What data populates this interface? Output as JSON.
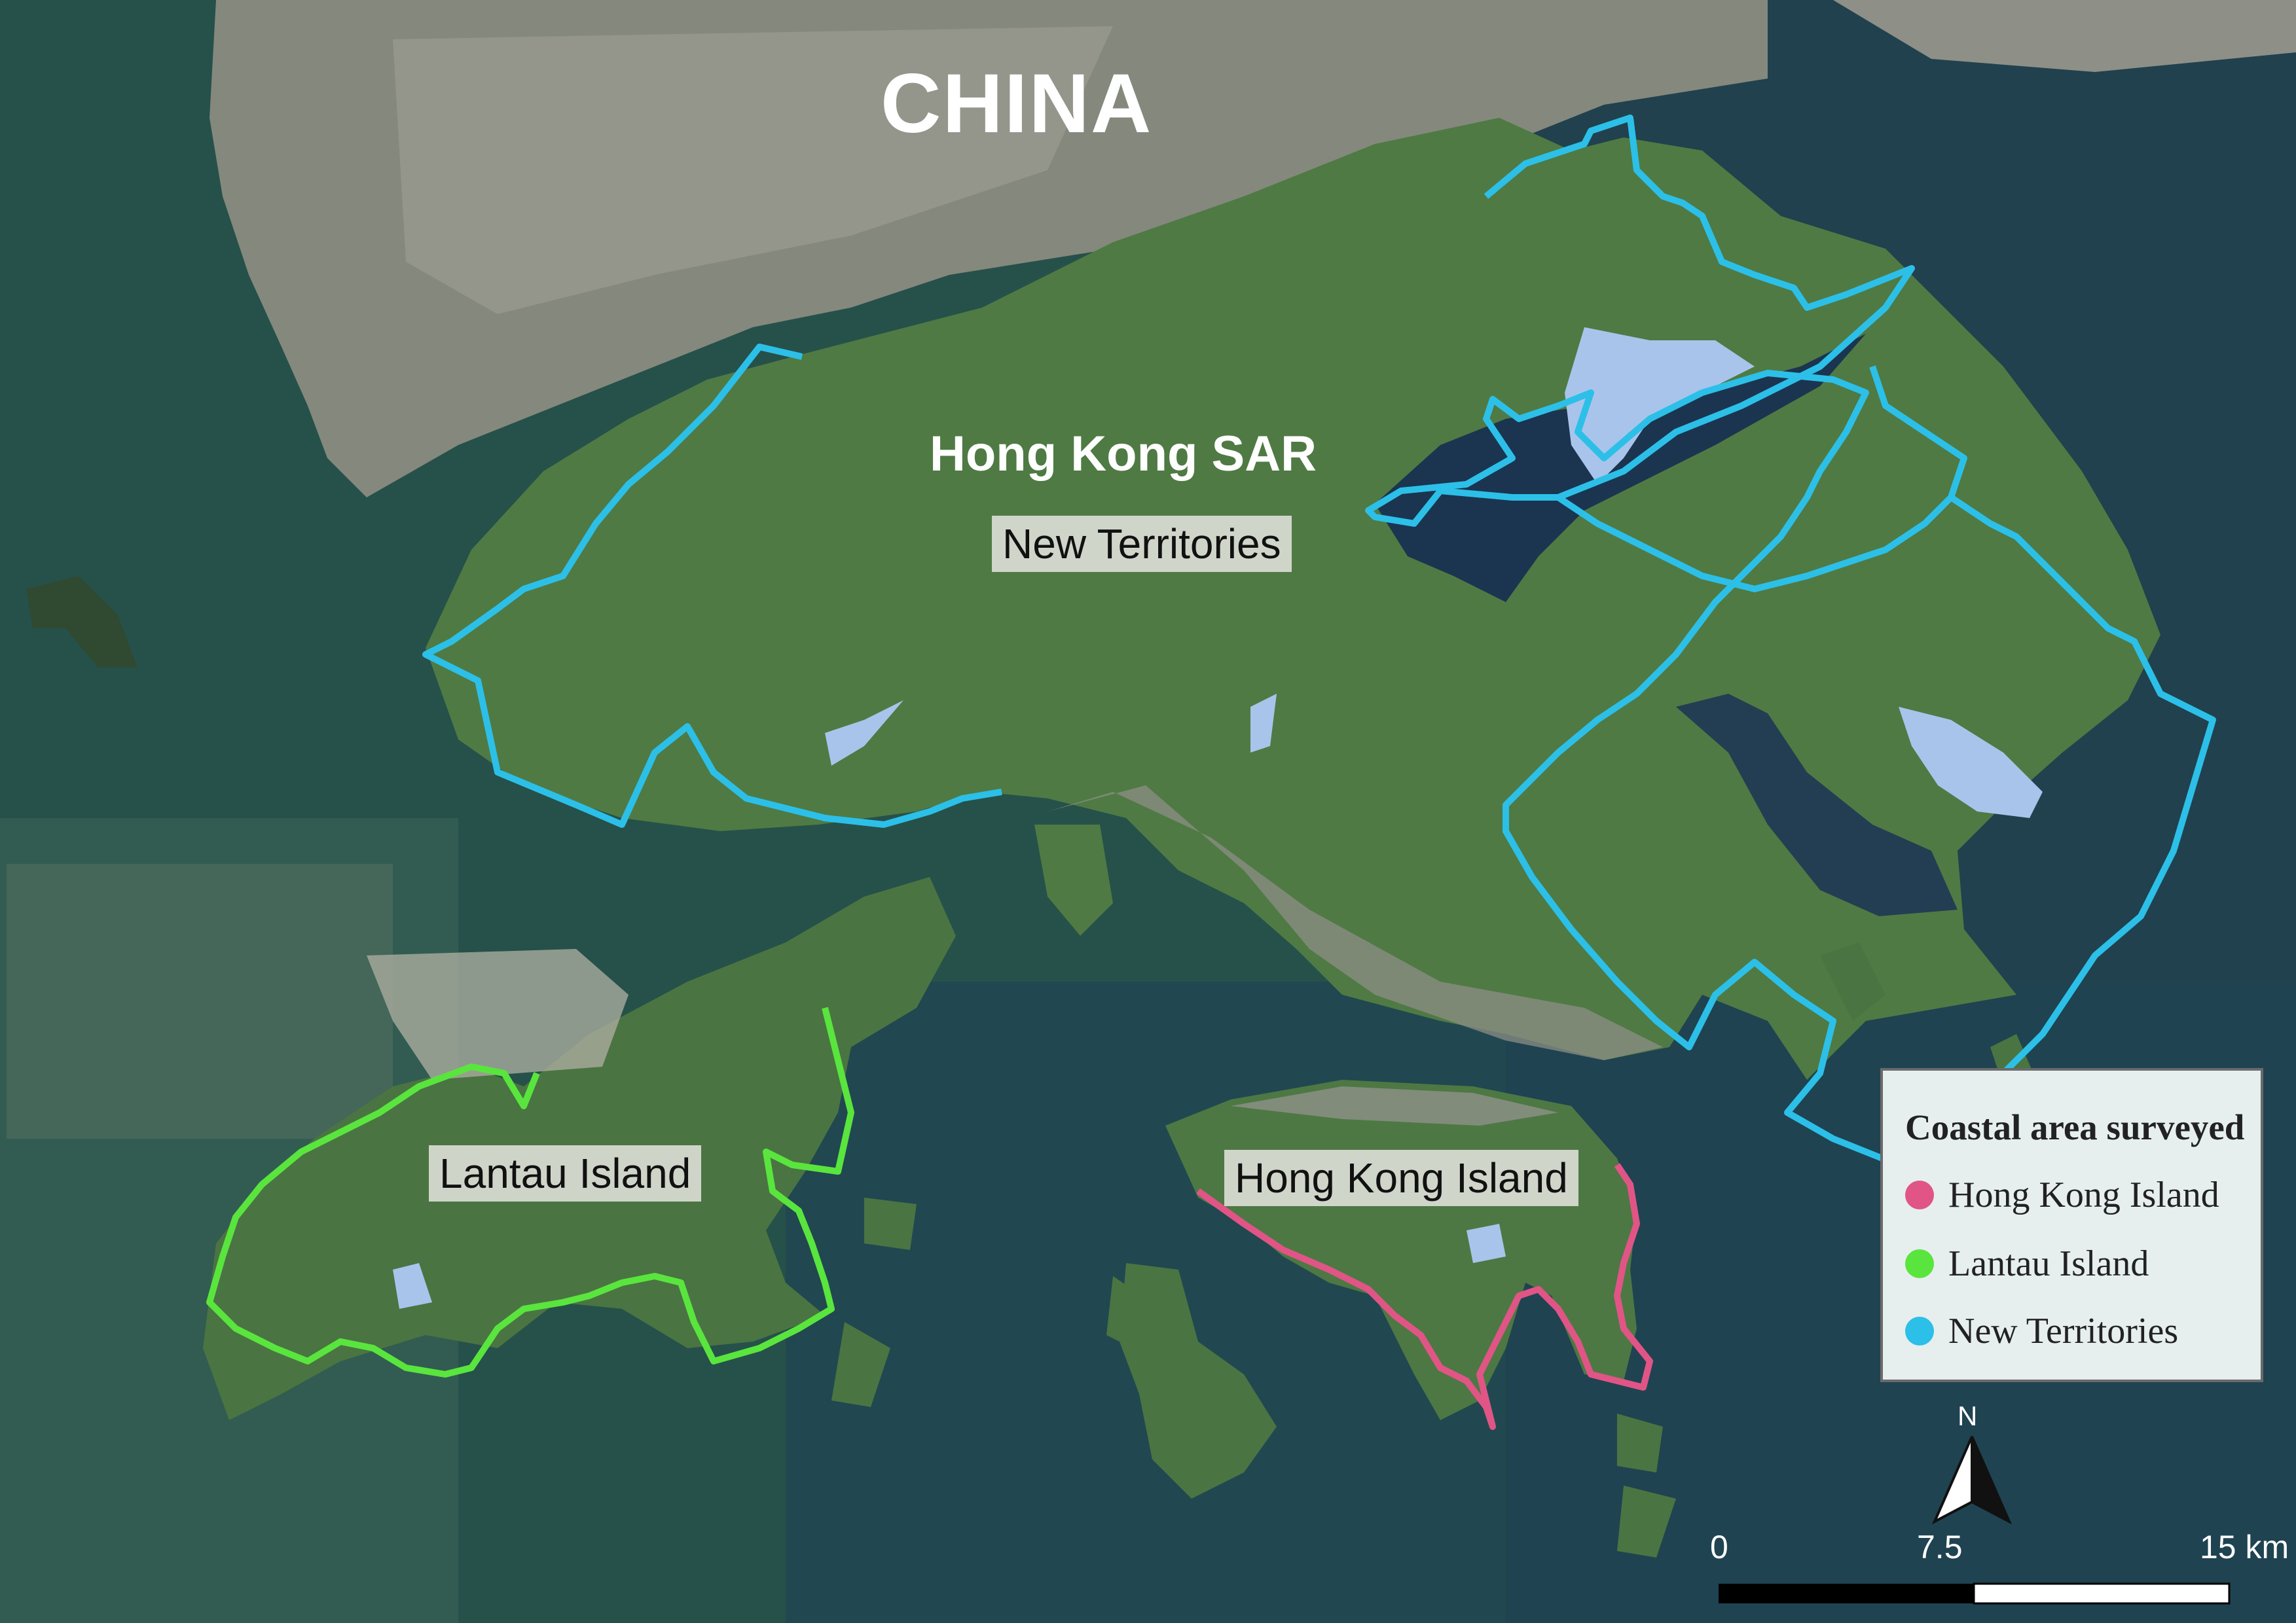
{
  "map": {
    "labels": {
      "country": "CHINA",
      "region": "Hong Kong SAR",
      "new_territories": "New Territories",
      "lantau": "Lantau Island",
      "hk_island": "Hong Kong Island"
    },
    "legend": {
      "title": "Coastal area surveyed",
      "items": [
        {
          "label": "Hong Kong Island",
          "color": "#e05585"
        },
        {
          "label": "Lantau Island",
          "color": "#59e53e"
        },
        {
          "label": "New Territories",
          "color": "#2cc0e8"
        }
      ]
    },
    "north_arrow": {
      "label": "N"
    },
    "scale_bar": {
      "labels": [
        "0",
        "7.5",
        "15 km"
      ]
    },
    "colors": {
      "sea": "#244a47",
      "deep_sea": "#1b3550",
      "land": "#4f7a45",
      "urban": "#8e8f86",
      "reservoir": "#a9c4ea"
    }
  }
}
